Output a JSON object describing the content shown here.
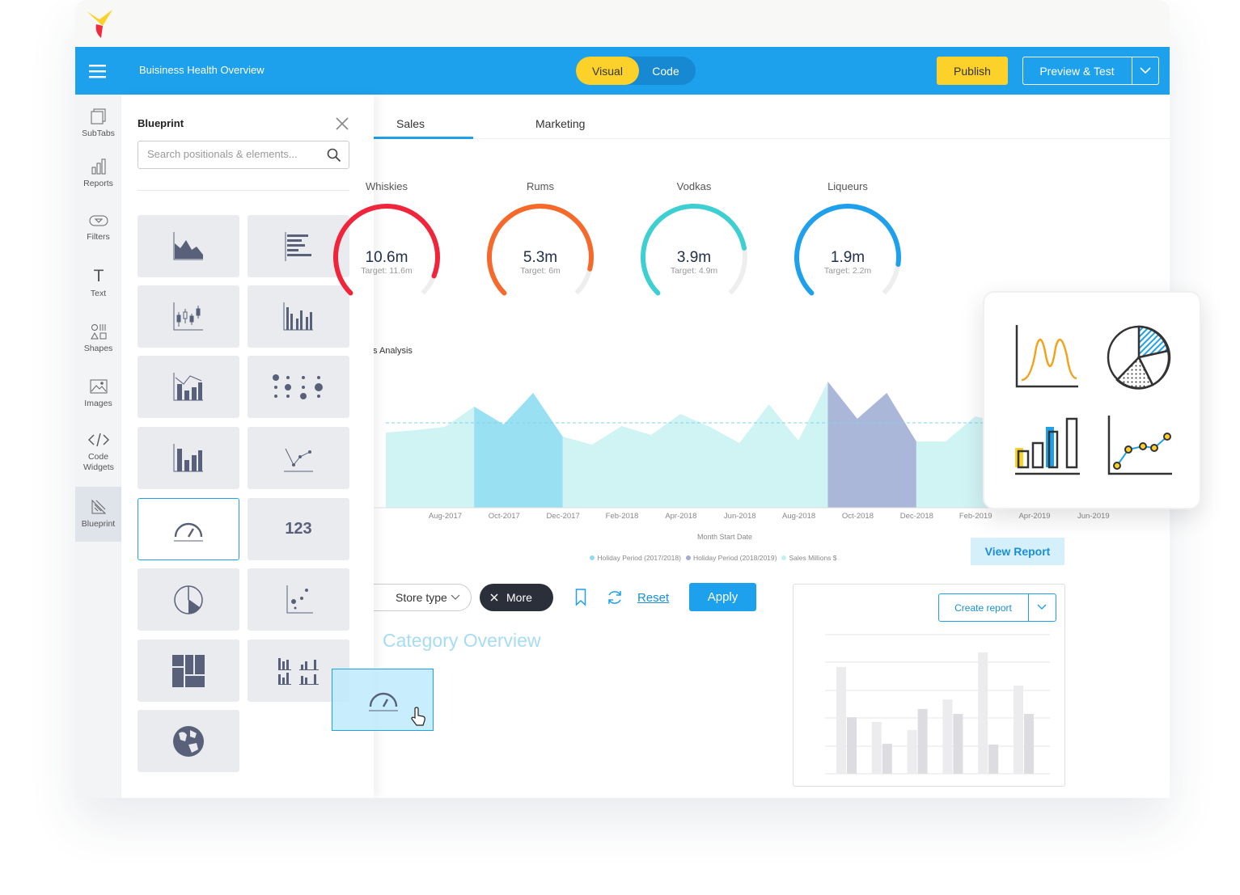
{
  "header": {
    "title": "Buisiness Health Overview",
    "modes": [
      "Visual",
      "Code"
    ],
    "publish": "Publish",
    "preview": "Preview & Test"
  },
  "sidebar": [
    "SubTabs",
    "Reports",
    "Filters",
    "Text",
    "Shapes",
    "Images",
    "Code Widgets",
    "Blueprint"
  ],
  "blueprint": {
    "title": "Blueprint",
    "search_placeholder": "Search positionals & elements...",
    "number_tile": "123"
  },
  "tabs": [
    "Sales",
    "Marketing"
  ],
  "gauges": [
    {
      "label": "Whiskies",
      "value": 10.6,
      "value_label": "10.6m",
      "target": 11.6,
      "target_label": "Target: 11.6m",
      "color": "#f0243a"
    },
    {
      "label": "Rums",
      "value": 5.3,
      "value_label": "5.3m",
      "target": 6,
      "target_label": "Target: 6m",
      "color": "#f5692a"
    },
    {
      "label": "Vodkas",
      "value": 3.9,
      "value_label": "3.9m",
      "target": 4.9,
      "target_label": "Target: 4.9m",
      "color": "#3ecfd2"
    },
    {
      "label": "Liqueurs",
      "value": 1.9,
      "value_label": "1.9m",
      "target": 2.2,
      "target_label": "Target: 2.2m",
      "color": "#1ea0ec"
    }
  ],
  "sales_chart": {
    "type": "area",
    "title": "Sales Analysis",
    "x": [
      null,
      "Aug-2017",
      null,
      "Oct-2017",
      null,
      "Dec-2017",
      null,
      "Feb-2018",
      null,
      "Apr-2018",
      null,
      "Jun-2018",
      null,
      "Aug-2018",
      null,
      "Oct-2018",
      null,
      "Dec-2018",
      null,
      "Feb-2019",
      null,
      "Apr-2019",
      null,
      "Jun-2019"
    ],
    "series": [
      {
        "name": "Sales Millions $",
        "color": "#c4f0f1",
        "values": [
          9.3,
          9.6,
          10.0,
          12.5,
          10.3,
          14.2,
          8.8,
          7.8,
          10.1,
          9.0,
          11.6,
          10.0,
          8.0,
          12.8,
          8.3,
          15.6,
          11.0,
          14.2,
          8.2,
          8.2,
          11.3,
          10.5,
          9.5,
          10.0
        ]
      }
    ],
    "highlights": [
      {
        "name": "Holiday Period (2017/2018)",
        "color": "#8fdcf2",
        "from": 3,
        "to": 6
      },
      {
        "name": "Holiday Period (2018/2019)",
        "color": "#a5abd2",
        "from": 15,
        "to": 18
      }
    ],
    "reference_line": 10.5,
    "xlabel": "Month Start Date",
    "ylim": [
      0,
      20
    ]
  },
  "filters": {
    "store_type": "Store type",
    "more": "More",
    "reset": "Reset",
    "apply": "Apply"
  },
  "view_report": "View Report",
  "category_overview": {
    "title": "Category Overview"
  },
  "report_card": {
    "button": "Create report",
    "chart": {
      "type": "bar",
      "categories": [
        null,
        null,
        null,
        null,
        null,
        null
      ],
      "series": [
        {
          "color": "#ececef",
          "values": [
            3.84,
            1.86,
            1.57,
            2.67,
            4.36,
            3.17
          ]
        },
        {
          "color": "#dcdce1",
          "values": [
            2.03,
            1.08,
            2.33,
            2.15,
            1.05,
            2.15
          ]
        }
      ],
      "ylim": [
        0,
        5
      ]
    }
  }
}
